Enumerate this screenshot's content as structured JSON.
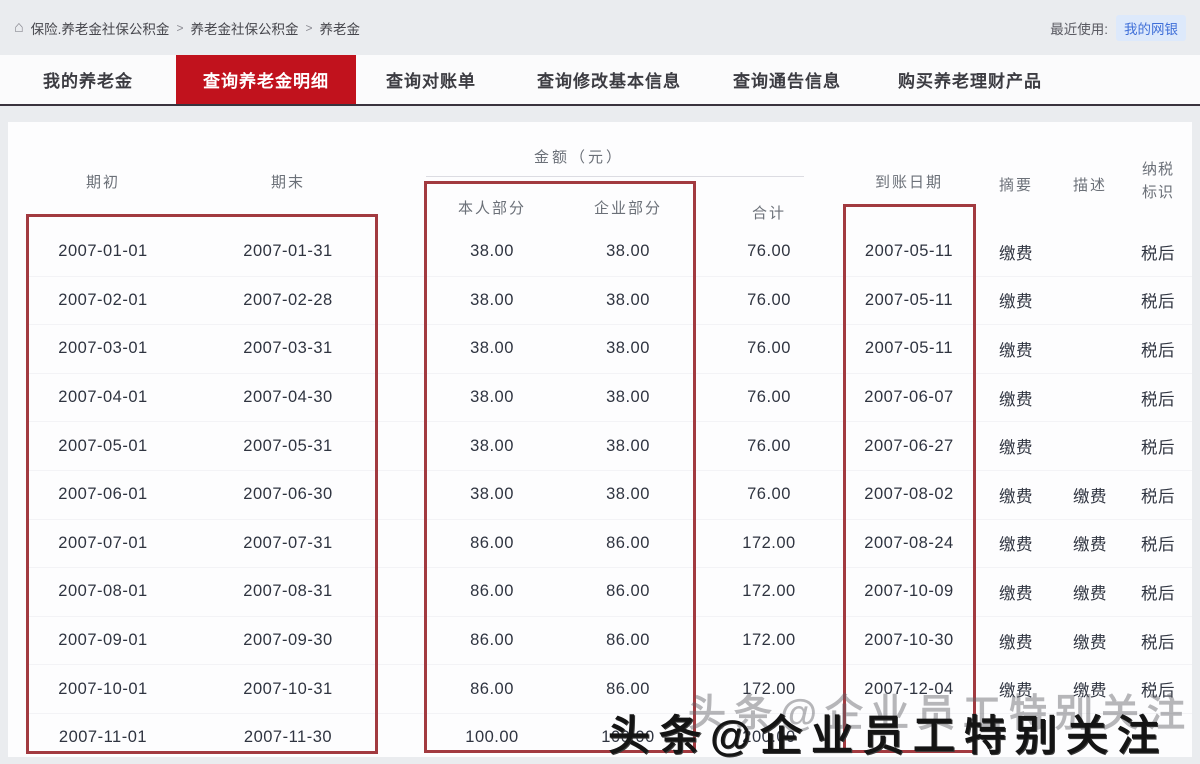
{
  "breadcrumb": {
    "segments": [
      "保险.养老金社保公积金",
      "养老金社保公积金",
      "养老金"
    ],
    "separator": ">",
    "recent_label": "最近使用:",
    "recent_link": "我的网银"
  },
  "tabs": [
    {
      "label": "我的养老金",
      "active": false
    },
    {
      "label": "查询养老金明细",
      "active": true
    },
    {
      "label": "查询对账单",
      "active": false
    },
    {
      "label": "查询修改基本信息",
      "active": false
    },
    {
      "label": "查询通告信息",
      "active": false
    },
    {
      "label": "购买养老理财产品",
      "active": false
    }
  ],
  "table": {
    "amount_group_header": "金额（元）",
    "headers": {
      "period_start": "期初",
      "period_end": "期末",
      "personal_part": "本人部分",
      "company_part": "企业部分",
      "total": "合计",
      "arrival_date": "到账日期",
      "summary": "摘要",
      "description": "描述",
      "tax_flag_line1": "纳税",
      "tax_flag_line2": "标识"
    },
    "rows": [
      [
        "2007-01-01",
        "2007-01-31",
        "38.00",
        "38.00",
        "76.00",
        "2007-05-11",
        "缴费",
        "",
        "税后"
      ],
      [
        "2007-02-01",
        "2007-02-28",
        "38.00",
        "38.00",
        "76.00",
        "2007-05-11",
        "缴费",
        "",
        "税后"
      ],
      [
        "2007-03-01",
        "2007-03-31",
        "38.00",
        "38.00",
        "76.00",
        "2007-05-11",
        "缴费",
        "",
        "税后"
      ],
      [
        "2007-04-01",
        "2007-04-30",
        "38.00",
        "38.00",
        "76.00",
        "2007-06-07",
        "缴费",
        "",
        "税后"
      ],
      [
        "2007-05-01",
        "2007-05-31",
        "38.00",
        "38.00",
        "76.00",
        "2007-06-27",
        "缴费",
        "",
        "税后"
      ],
      [
        "2007-06-01",
        "2007-06-30",
        "38.00",
        "38.00",
        "76.00",
        "2007-08-02",
        "缴费",
        "缴费",
        "税后"
      ],
      [
        "2007-07-01",
        "2007-07-31",
        "86.00",
        "86.00",
        "172.00",
        "2007-08-24",
        "缴费",
        "缴费",
        "税后"
      ],
      [
        "2007-08-01",
        "2007-08-31",
        "86.00",
        "86.00",
        "172.00",
        "2007-10-09",
        "缴费",
        "缴费",
        "税后"
      ],
      [
        "2007-09-01",
        "2007-09-30",
        "86.00",
        "86.00",
        "172.00",
        "2007-10-30",
        "缴费",
        "缴费",
        "税后"
      ],
      [
        "2007-10-01",
        "2007-10-31",
        "86.00",
        "86.00",
        "172.00",
        "2007-12-04",
        "缴费",
        "缴费",
        "税后"
      ],
      [
        "2007-11-01",
        "2007-11-30",
        "100.00",
        "100.00",
        "200.00",
        "",
        "",
        "",
        ""
      ]
    ]
  },
  "watermark": {
    "ghost_text": "头条@企业员工特别关注",
    "main_text": "头条@企业员工特别关注"
  },
  "colors": {
    "accent_red": "#c1121d",
    "highlight_border": "#a23a40",
    "page_bg": "#eaecef"
  }
}
